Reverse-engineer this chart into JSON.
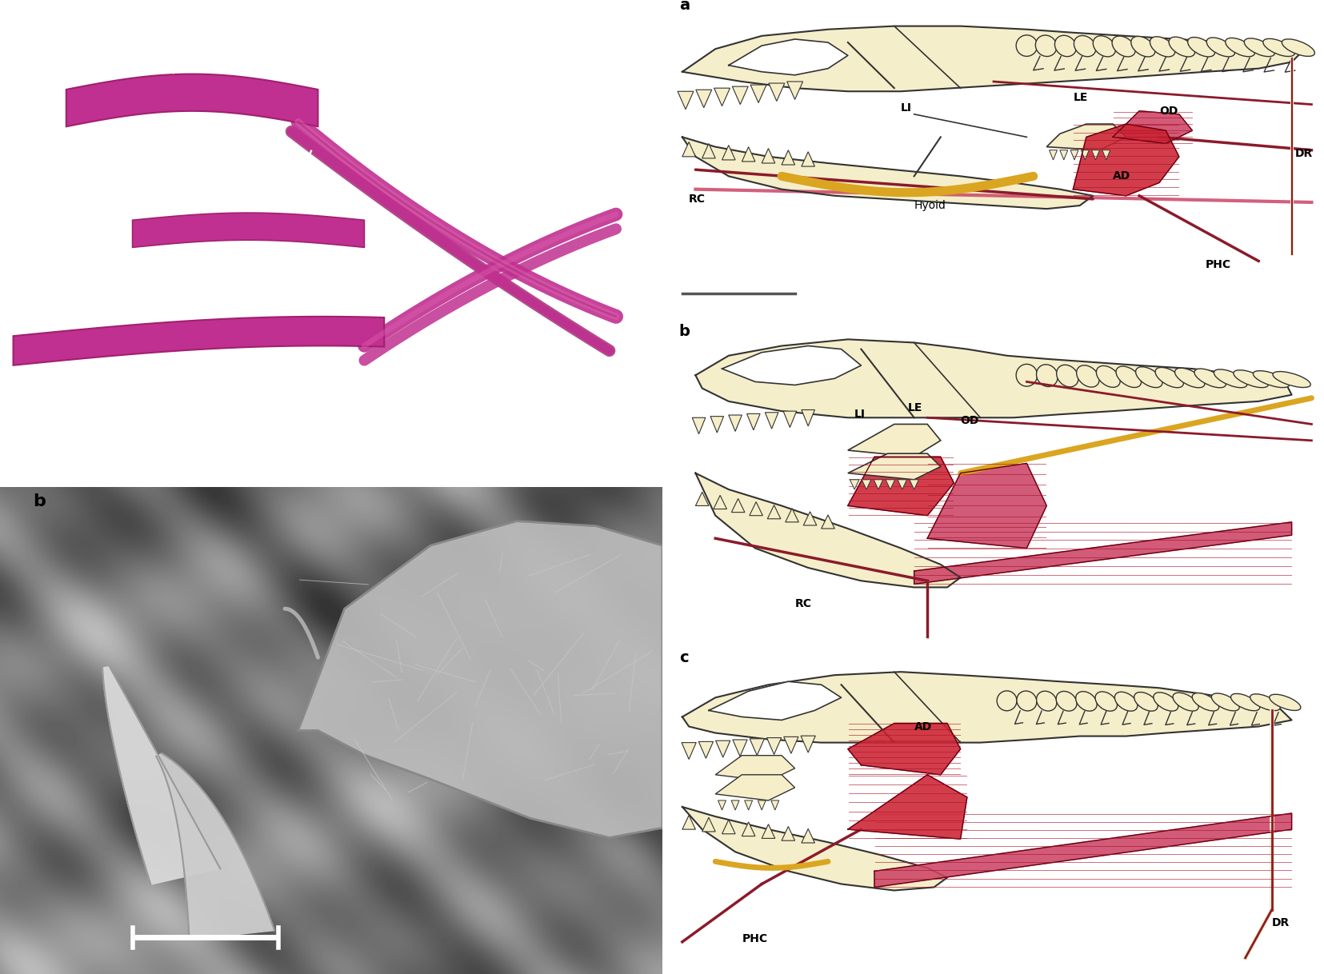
{
  "figure_width": 16.56,
  "figure_height": 12.18,
  "dpi": 100,
  "bg_color": "#ffffff",
  "bone_color": "#F5EEC8",
  "bone_edge": "#333333",
  "muscle_red": "#CC2233",
  "muscle_pink": "#CC4466",
  "tendon_gold": "#DAA520",
  "dark_red": "#8B1A2A",
  "pink_jaw": "#CC3399",
  "pink_jaw_light": "#DD77BB",
  "panel_label_size": 14,
  "annotation_size": 10,
  "panels": {
    "tl": [
      0.0,
      0.5,
      0.5,
      0.5
    ],
    "bl": [
      0.0,
      0.0,
      0.5,
      0.5
    ],
    "ra": [
      0.5,
      0.665,
      0.5,
      0.335
    ],
    "rb": [
      0.5,
      0.33,
      0.5,
      0.335
    ],
    "rc": [
      0.5,
      0.0,
      0.5,
      0.33
    ]
  }
}
